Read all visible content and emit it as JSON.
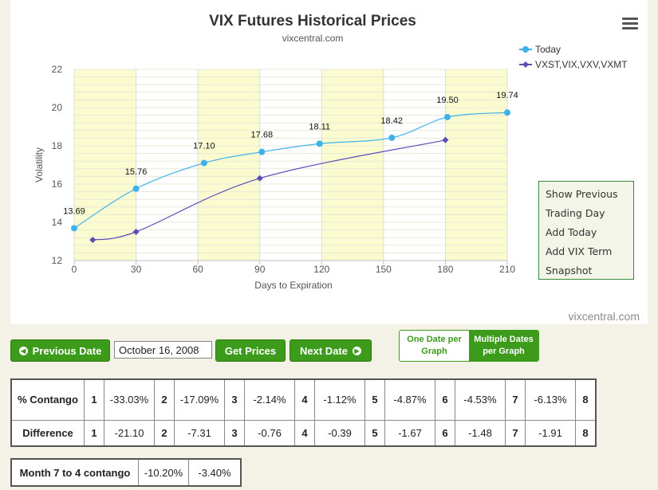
{
  "chart_data": {
    "type": "line",
    "title": "VIX Futures Historical Prices",
    "subtitle": "vixcentral.com",
    "xlabel": "Days to Expiration",
    "ylabel": "Volatility",
    "xlim": [
      0,
      210
    ],
    "ylim": [
      12,
      22
    ],
    "x_ticks": [
      "0",
      "30",
      "60",
      "90",
      "120",
      "150",
      "180",
      "210"
    ],
    "y_ticks": [
      "12",
      "14",
      "16",
      "18",
      "20",
      "22"
    ],
    "legend_position": "top-right",
    "series": [
      {
        "name": "Today",
        "color": "#3fb1ea",
        "marker": "circle",
        "x": [
          0,
          30,
          63,
          91,
          119,
          154,
          181,
          210
        ],
        "values": [
          13.69,
          15.76,
          17.1,
          17.68,
          18.11,
          18.42,
          19.5,
          19.74
        ],
        "labels": [
          "13.69",
          "15.76",
          "17.10",
          "17.68",
          "18.11",
          "18.42",
          "19.50",
          "19.74"
        ]
      },
      {
        "name": "VXST,VIX,VXV,VXMT",
        "color": "#5b4bb7",
        "marker": "diamond",
        "x": [
          9,
          30,
          90,
          180
        ],
        "values": [
          13.08,
          13.5,
          16.3,
          18.3
        ]
      }
    ],
    "shaded_bands_x": [
      [
        0,
        30
      ],
      [
        60,
        90
      ],
      [
        120,
        150
      ],
      [
        180,
        210
      ]
    ]
  },
  "menu": {
    "items": [
      "Show Previous",
      "Trading Day",
      "Add Today",
      "Add VIX Term",
      "Snapshot"
    ]
  },
  "credit": "vixcentral.com",
  "controls": {
    "prev_label": "Previous Date",
    "date_value": "October 16, 2008",
    "get_label": "Get Prices",
    "next_label": "Next Date",
    "toggle_one": "One Date per Graph",
    "toggle_multi": "Multiple Dates per Graph"
  },
  "contango_table": {
    "row1_label": "% Contango",
    "row2_label": "Difference",
    "months": [
      "1",
      "2",
      "3",
      "4",
      "5",
      "6",
      "7",
      "8"
    ],
    "contango": [
      "-33.03%",
      "-17.09%",
      "-2.14%",
      "-1.12%",
      "-4.87%",
      "-4.53%",
      "-6.13%"
    ],
    "difference": [
      "-21.10",
      "-7.31",
      "-0.76",
      "-0.39",
      "-1.67",
      "-1.48",
      "-1.91"
    ]
  },
  "month7_table": {
    "label": "Month 7 to 4 contango",
    "values": [
      "-10.20%",
      "-3.40%"
    ]
  }
}
